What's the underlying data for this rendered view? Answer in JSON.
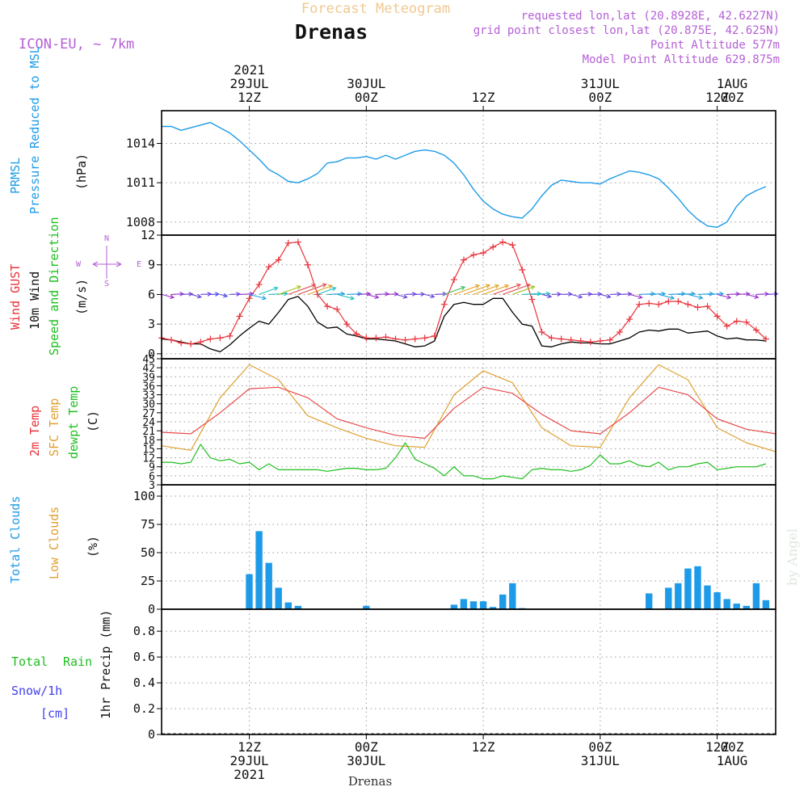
{
  "header": {
    "top_title": "Forecast Meteogram",
    "station": "Drenas",
    "model": "ICON-EU, ~ 7km",
    "requested": "requested lon,lat (20.8928E, 42.6227N)",
    "grid_point": "grid point closest lon,lat (20.875E, 42.625N)",
    "point_altitude": "Point Altitude 577m",
    "model_altitude": "Model Point Altitude 629.875m"
  },
  "time_axis": {
    "top_labels": [
      {
        "line1": "2021",
        "line2": "29JUL",
        "line3": "12Z"
      },
      {
        "line1": "",
        "line2": "30JUL",
        "line3": "00Z"
      },
      {
        "line1": "",
        "line2": "",
        "line3": "12Z"
      },
      {
        "line1": "",
        "line2": "31JUL",
        "line3": "00Z"
      },
      {
        "line1": "",
        "line2": "",
        "line3": "12Z"
      },
      {
        "line1": "",
        "line2": "1AUG",
        "line3": "00Z"
      }
    ],
    "bottom_labels": [
      {
        "line1": "12Z",
        "line2": "29JUL",
        "line3": "2021"
      },
      {
        "line1": "00Z",
        "line2": "30JUL",
        "line3": ""
      },
      {
        "line1": "12Z",
        "line2": "",
        "line3": ""
      },
      {
        "line1": "00Z",
        "line2": "31JUL",
        "line3": ""
      },
      {
        "line1": "12Z",
        "line2": "",
        "line3": ""
      },
      {
        "line1": "00Z",
        "line2": "1AUG",
        "line3": ""
      }
    ],
    "footer_station": "Drenas",
    "x_range_hours": [
      -9,
      54
    ],
    "tick_hours": [
      0,
      12,
      24,
      36,
      48
    ]
  },
  "panels": {
    "pressure": {
      "label_title": "PRMSL",
      "label_sub": "Pressure Reduced to MSL",
      "unit": "(hPa)",
      "y_ticks": [
        "1008",
        "1011",
        "1014"
      ]
    },
    "wind": {
      "label_gust": "Wind GUST",
      "label_10m": "10m Wind",
      "label_speed": "Speed and Direction",
      "unit": "(m/s)",
      "y_ticks": [
        "0",
        "3",
        "6",
        "9",
        "12"
      ],
      "compass": {
        "n": "N",
        "s": "S",
        "e": "E",
        "w": "W"
      }
    },
    "temperature": {
      "label_2m": "2m Temp",
      "label_sfc": "SFC Temp",
      "label_dewpt": "dewpt Temp",
      "unit": "(C)",
      "y_ticks": [
        "3",
        "6",
        "9",
        "12",
        "15",
        "18",
        "21",
        "24",
        "27",
        "30",
        "33",
        "36",
        "39",
        "42",
        "45"
      ]
    },
    "clouds": {
      "label_total": "Total Clouds",
      "label_low": "Low Clouds",
      "unit": "(%)",
      "y_ticks": [
        "0",
        "25",
        "50",
        "75",
        "100"
      ]
    },
    "precip": {
      "label_total": "Total",
      "label_rain": "Rain",
      "label_snow": "Snow/1h",
      "label_cm": "[cm]",
      "unit": "1hr Precip (mm)",
      "y_ticks": [
        "0",
        "0.2",
        "0.4",
        "0.6",
        "0.8"
      ]
    }
  },
  "watermark": "by Angel",
  "colors": {
    "pressure": "#1e9be8",
    "gust": "#e8333a",
    "wind10m": "#000000",
    "temp2m": "#e84a4a",
    "sfc": "#e0a030",
    "dewpt": "#1fbf1f",
    "cloud": "#1e9be8",
    "header_purple": "#b55fd6",
    "header_orange": "#f0c890"
  },
  "chart_data": [
    {
      "type": "line",
      "panel": "pressure",
      "ylabel": "(hPa)",
      "ylim": [
        1007,
        1016.5
      ],
      "series": [
        {
          "name": "PRMSL",
          "x": [
            -9,
            -8,
            -7,
            -6,
            -5,
            -4,
            -3,
            -2,
            -1,
            0,
            1,
            2,
            3,
            4,
            5,
            6,
            7,
            8,
            9,
            10,
            11,
            12,
            13,
            14,
            15,
            16,
            17,
            18,
            19,
            20,
            21,
            22,
            23,
            24,
            25,
            26,
            27,
            28,
            29,
            30,
            31,
            32,
            33,
            34,
            35,
            36,
            37,
            38,
            39,
            40,
            41,
            42,
            43,
            44,
            45,
            46,
            47,
            48,
            49,
            50,
            51,
            52,
            53
          ],
          "values": [
            1015.3,
            1015.3,
            1015.0,
            1015.2,
            1015.4,
            1015.6,
            1015.2,
            1014.8,
            1014.2,
            1013.5,
            1012.8,
            1012.0,
            1011.6,
            1011.1,
            1011.0,
            1011.3,
            1011.7,
            1012.5,
            1012.6,
            1012.9,
            1012.9,
            1013.0,
            1012.8,
            1013.1,
            1012.8,
            1013.1,
            1013.4,
            1013.5,
            1013.4,
            1013.1,
            1012.5,
            1011.6,
            1010.5,
            1009.6,
            1009.0,
            1008.6,
            1008.4,
            1008.3,
            1009.0,
            1010.0,
            1010.8,
            1011.2,
            1011.1,
            1011.0,
            1011.0,
            1010.9,
            1011.3,
            1011.6,
            1011.9,
            1011.8,
            1011.6,
            1011.3,
            1010.6,
            1009.8,
            1008.9,
            1008.2,
            1007.7,
            1007.6,
            1008.0,
            1009.2,
            1010.0,
            1010.4,
            1010.7
          ]
        }
      ]
    },
    {
      "type": "line",
      "panel": "wind",
      "ylabel": "(m/s)",
      "ylim": [
        -0.5,
        12
      ],
      "series": [
        {
          "name": "Wind GUST",
          "x": [
            -9,
            -8,
            -7,
            -6,
            -5,
            -4,
            -3,
            -2,
            -1,
            0,
            1,
            2,
            3,
            4,
            5,
            6,
            7,
            8,
            9,
            10,
            11,
            12,
            13,
            14,
            15,
            16,
            17,
            18,
            19,
            20,
            21,
            22,
            23,
            24,
            25,
            26,
            27,
            28,
            29,
            30,
            31,
            32,
            33,
            34,
            35,
            36,
            37,
            38,
            39,
            40,
            41,
            42,
            43,
            44,
            45,
            46,
            47,
            48,
            49,
            50,
            51,
            52,
            53
          ],
          "values": [
            1.6,
            1.4,
            1.1,
            1.0,
            1.2,
            1.5,
            1.6,
            1.8,
            3.8,
            5.6,
            7.0,
            8.8,
            9.5,
            11.2,
            11.3,
            9.0,
            6.0,
            4.8,
            4.5,
            3.0,
            2.0,
            1.6,
            1.6,
            1.7,
            1.5,
            1.4,
            1.5,
            1.6,
            1.8,
            5.0,
            7.5,
            9.5,
            10.0,
            10.2,
            10.8,
            11.3,
            11.0,
            8.5,
            5.5,
            2.2,
            1.6,
            1.5,
            1.4,
            1.3,
            1.2,
            1.3,
            1.4,
            2.2,
            3.5,
            5.0,
            5.1,
            5.0,
            5.3,
            5.3,
            5.0,
            4.7,
            4.8,
            3.8,
            2.8,
            3.3,
            3.2,
            2.4,
            1.5
          ]
        },
        {
          "name": "10m Wind",
          "x": [
            -9,
            -8,
            -7,
            -6,
            -5,
            -4,
            -3,
            -2,
            -1,
            0,
            1,
            2,
            3,
            4,
            5,
            6,
            7,
            8,
            9,
            10,
            11,
            12,
            13,
            14,
            15,
            16,
            17,
            18,
            19,
            20,
            21,
            22,
            23,
            24,
            25,
            26,
            27,
            28,
            29,
            30,
            31,
            32,
            33,
            34,
            35,
            36,
            37,
            38,
            39,
            40,
            41,
            42,
            43,
            44,
            45,
            46,
            47,
            48,
            49,
            50,
            51,
            52,
            53
          ],
          "values": [
            1.5,
            1.4,
            1.2,
            1.0,
            1.0,
            0.5,
            0.2,
            0.9,
            1.8,
            2.6,
            3.3,
            3.0,
            4.2,
            5.5,
            5.8,
            4.8,
            3.2,
            2.6,
            2.7,
            2.0,
            1.8,
            1.5,
            1.5,
            1.4,
            1.3,
            1.0,
            0.7,
            0.8,
            1.3,
            3.8,
            5.0,
            5.2,
            5.0,
            5.0,
            5.6,
            5.6,
            4.2,
            3.0,
            2.8,
            0.8,
            0.7,
            1.0,
            1.2,
            1.1,
            1.1,
            1.0,
            1.0,
            1.3,
            1.6,
            2.2,
            2.4,
            2.3,
            2.5,
            2.5,
            2.1,
            2.2,
            2.3,
            1.8,
            1.5,
            1.6,
            1.4,
            1.4,
            1.3
          ]
        }
      ]
    },
    {
      "type": "line",
      "panel": "temperature",
      "ylabel": "(C)",
      "ylim": [
        3,
        45
      ],
      "series": [
        {
          "name": "2m Temp",
          "x": [
            -9,
            -6,
            -3,
            0,
            3,
            6,
            9,
            12,
            15,
            18,
            21,
            24,
            27,
            30,
            33,
            36,
            39,
            42,
            45,
            48,
            51,
            54
          ],
          "values": [
            20.5,
            20.0,
            27.0,
            35.0,
            35.5,
            32.0,
            25.0,
            22.0,
            19.5,
            18.5,
            28.5,
            35.5,
            33.5,
            26.5,
            21.0,
            20.0,
            27.0,
            35.5,
            33.0,
            25.0,
            21.5,
            20.0
          ]
        },
        {
          "name": "SFC Temp",
          "x": [
            -9,
            -6,
            -3,
            0,
            3,
            6,
            9,
            12,
            15,
            18,
            21,
            24,
            27,
            30,
            33,
            36,
            39,
            42,
            45,
            48,
            51,
            54
          ],
          "values": [
            16.0,
            14.5,
            32.0,
            43.0,
            38.0,
            26.0,
            22.0,
            18.5,
            16.0,
            15.5,
            33.0,
            41.0,
            37.0,
            22.0,
            16.0,
            15.5,
            32.0,
            43.0,
            38.0,
            22.0,
            17.0,
            14.0
          ]
        },
        {
          "name": "dewpt Temp",
          "x": [
            -9,
            -8,
            -7,
            -6,
            -5,
            -4,
            -3,
            -2,
            -1,
            0,
            1,
            2,
            3,
            4,
            5,
            6,
            7,
            8,
            9,
            10,
            11,
            12,
            13,
            14,
            15,
            16,
            17,
            18,
            19,
            20,
            21,
            22,
            23,
            24,
            25,
            26,
            27,
            28,
            29,
            30,
            31,
            32,
            33,
            34,
            35,
            36,
            37,
            38,
            39,
            40,
            41,
            42,
            43,
            44,
            45,
            46,
            47,
            48,
            49,
            50,
            51,
            52,
            53
          ],
          "values": [
            10.5,
            10.5,
            10.0,
            10.5,
            16.5,
            12.0,
            11.0,
            11.5,
            10.0,
            10.5,
            8.0,
            10.0,
            8.0,
            8.0,
            8.0,
            8.0,
            8.0,
            7.5,
            8.0,
            8.5,
            8.5,
            8.0,
            8.0,
            8.5,
            12.0,
            17.0,
            11.5,
            10.0,
            8.5,
            6.0,
            9.0,
            6.0,
            6.0,
            5.0,
            5.0,
            6.0,
            5.5,
            5.0,
            8.0,
            8.5,
            8.0,
            8.0,
            7.5,
            8.0,
            9.5,
            13.0,
            10.0,
            10.0,
            11.0,
            9.5,
            9.0,
            10.5,
            8.0,
            9.0,
            9.0,
            10.0,
            10.5,
            8.0,
            8.5,
            9.0,
            9.0,
            9.0,
            10.0
          ]
        }
      ]
    },
    {
      "type": "bar",
      "panel": "clouds",
      "ylabel": "(%)",
      "ylim": [
        0,
        110
      ],
      "series": [
        {
          "name": "Total Clouds",
          "x": [
            0,
            1,
            2,
            3,
            4,
            5,
            12,
            21,
            22,
            23,
            24,
            25,
            26,
            27,
            28,
            41,
            43,
            44,
            45,
            46,
            47,
            48,
            49,
            50,
            51,
            52,
            53
          ],
          "values": [
            31,
            69,
            41,
            19,
            6,
            3,
            3,
            4,
            9,
            7,
            7,
            2,
            13,
            23,
            1,
            14,
            19,
            23,
            36,
            38,
            21,
            15,
            9,
            5,
            3,
            23,
            8
          ]
        },
        {
          "name": "Low Clouds",
          "x": [],
          "values": []
        }
      ]
    },
    {
      "type": "line",
      "panel": "precip",
      "ylabel": "1hr Precip (mm)",
      "ylim": [
        0,
        0.97
      ],
      "series": [
        {
          "name": "Total Rain",
          "x": [
            -9,
            54
          ],
          "values": [
            0,
            0
          ]
        }
      ]
    }
  ]
}
